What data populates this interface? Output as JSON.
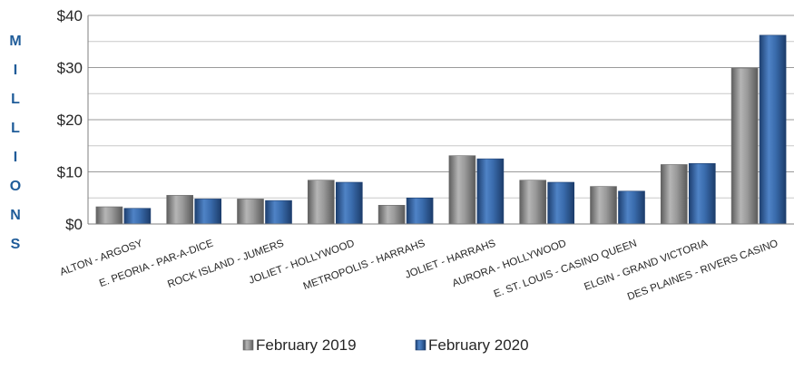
{
  "chart_data": {
    "type": "bar",
    "title": "",
    "ylabel": "MILLIONS",
    "xlabel": "",
    "ylim": [
      0,
      40
    ],
    "yticks": [
      0,
      10,
      20,
      30,
      40
    ],
    "ytick_labels": [
      "$0",
      "$10",
      "$20",
      "$30",
      "$40"
    ],
    "grid": true,
    "legend_position": "bottom",
    "categories": [
      "ALTON - ARGOSY",
      "E. PEORIA - PAR-A-DICE",
      "ROCK ISLAND - JUMERS",
      "JOLIET - HOLLYWOOD",
      "METROPOLIS - HARRAHS",
      "JOLIET - HARRAHS",
      "AURORA - HOLLYWOOD",
      "E. ST. LOUIS - CASINO QUEEN",
      "ELGIN - GRAND VICTORIA",
      "DES PLAINES - RIVERS CASINO"
    ],
    "series": [
      {
        "name": "February 2019",
        "color": "#8c8c8c",
        "values": [
          3.3,
          5.5,
          4.8,
          8.4,
          3.6,
          13.1,
          8.4,
          7.2,
          11.4,
          29.9
        ]
      },
      {
        "name": "February 2020",
        "color": "#2e5c9a",
        "values": [
          3.0,
          4.8,
          4.5,
          8.0,
          5.0,
          12.5,
          8.0,
          6.3,
          11.6,
          36.2
        ]
      }
    ]
  }
}
